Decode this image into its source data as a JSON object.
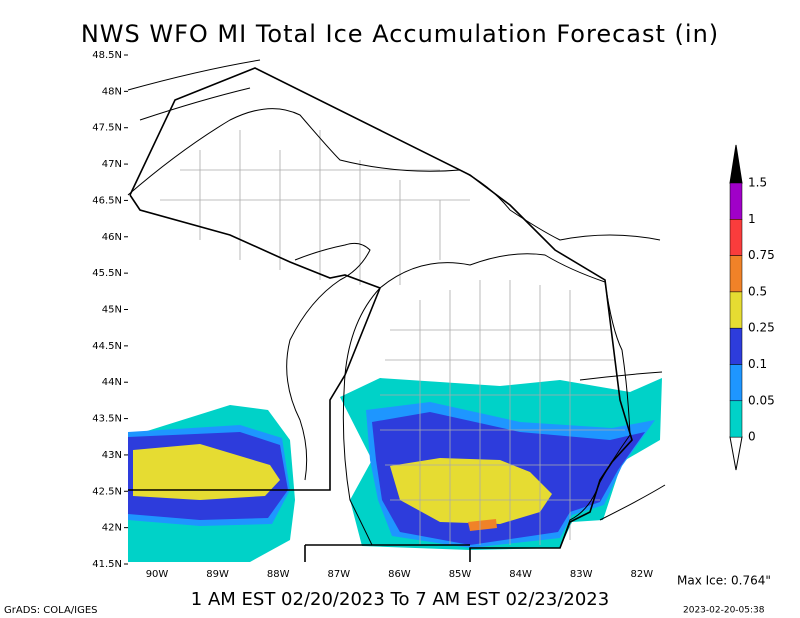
{
  "header": {
    "title": "NWS WFO MI Total Ice Accumulation Forecast (in)"
  },
  "map": {
    "lat_labels": [
      "48.5N",
      "48N",
      "47.5N",
      "47N",
      "46.5N",
      "46N",
      "45.5N",
      "45N",
      "44.5N",
      "44N",
      "43.5N",
      "43N",
      "42.5N",
      "42N",
      "41.5N"
    ],
    "lon_labels": [
      "90W",
      "89W",
      "88W",
      "87W",
      "86W",
      "85W",
      "84W",
      "83W",
      "82W"
    ]
  },
  "legend": {
    "items": [
      {
        "label": "1.5",
        "color": "#000000"
      },
      {
        "label": "1",
        "color": "#a000c8"
      },
      {
        "label": "0.75",
        "color": "#fa3c3c"
      },
      {
        "label": "0.5",
        "color": "#f08228"
      },
      {
        "label": "0.25",
        "color": "#e6dc32"
      },
      {
        "label": "0.1",
        "color": "#2d3cdc"
      },
      {
        "label": "0.05",
        "color": "#1e96ff"
      },
      {
        "label": "0",
        "color": "#00d2c8"
      }
    ]
  },
  "footer": {
    "max_ice": "Max Ice: 0.764\"",
    "valid": "1 AM EST 02/20/2023 To 7 AM EST 02/23/2023",
    "credit": "GrADS: COLA/IGES",
    "timestamp": "2023-02-20-05:38"
  }
}
